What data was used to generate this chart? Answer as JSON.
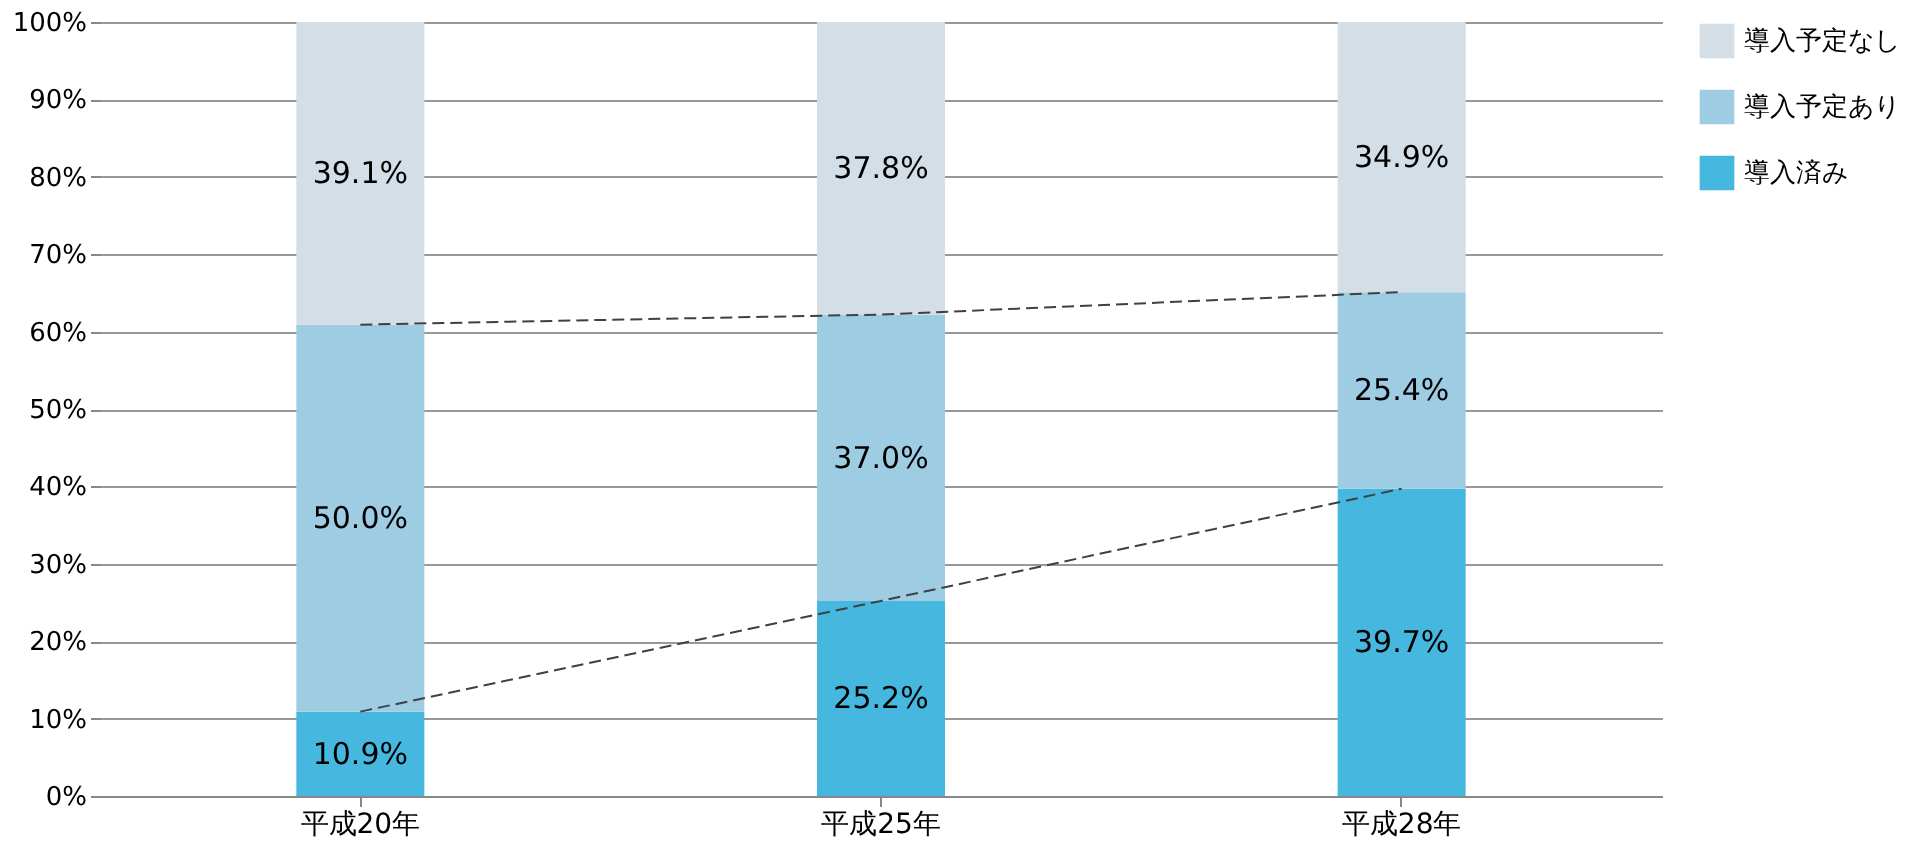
{
  "chart_data": {
    "type": "bar",
    "stacked": true,
    "categories": [
      "平成20年",
      "平成25年",
      "平成28年"
    ],
    "series": [
      {
        "name": "導入済み",
        "color": "#46b8e0",
        "values": [
          10.9,
          25.2,
          39.7
        ],
        "value_labels": [
          "10.9%",
          "25.2%",
          "39.7%"
        ]
      },
      {
        "name": "導入予定あり",
        "color": "#9ecde3",
        "values": [
          50.0,
          37.0,
          25.4
        ],
        "value_labels": [
          "50.0%",
          "37.0%",
          "25.4%"
        ]
      },
      {
        "name": "導入予定なし",
        "color": "#d3dee6",
        "values": [
          39.1,
          37.8,
          34.9
        ],
        "value_labels": [
          "39.1%",
          "37.8%",
          "34.9%"
        ]
      },
      {
        "type": "line",
        "color": "#404040",
        "line_style": "dashed",
        "values": [
          10.9,
          25.2,
          39.7
        ]
      },
      {
        "type": "line",
        "color": "#404040",
        "line_style": "dashed",
        "values": [
          60.9,
          62.2,
          65.1
        ]
      }
    ],
    "ylim": [
      0,
      100
    ],
    "yticks": [
      {
        "value": 0,
        "label": "0%"
      },
      {
        "value": 10,
        "label": "10%"
      },
      {
        "value": 20,
        "label": "20%"
      },
      {
        "value": 30,
        "label": "30%"
      },
      {
        "value": 40,
        "label": "40%"
      },
      {
        "value": 50,
        "label": "50%"
      },
      {
        "value": 60,
        "label": "60%"
      },
      {
        "value": 70,
        "label": "70%"
      },
      {
        "value": 80,
        "label": "80%"
      },
      {
        "value": 90,
        "label": "90%"
      },
      {
        "value": 100,
        "label": "100%"
      }
    ],
    "grid": "y",
    "legend": "right"
  }
}
